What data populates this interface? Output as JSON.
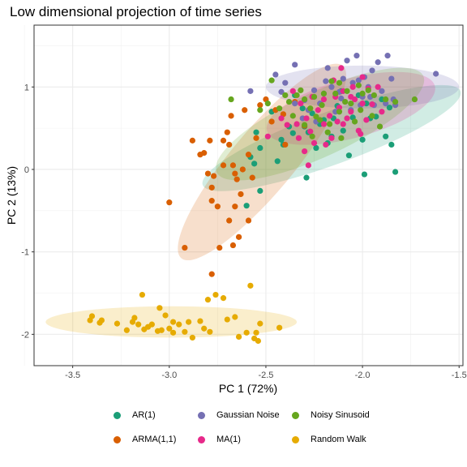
{
  "chart_data": {
    "type": "scatter",
    "title": "Low dimensional projection of time series",
    "xlabel": "PC 1 (72%)",
    "ylabel": "PC 2 (13%)",
    "xlim": [
      -3.7,
      -1.48
    ],
    "ylim": [
      -2.38,
      1.75
    ],
    "x_ticks": [
      -3.5,
      -3.0,
      -2.5,
      -2.0,
      -1.5
    ],
    "x_tick_labels": [
      "-3.5",
      "-3.0",
      "-2.5",
      "-2.0",
      "-1.5"
    ],
    "y_ticks": [
      -2,
      -1,
      0,
      1
    ],
    "y_tick_labels": [
      "-2",
      "-1",
      "0",
      "1"
    ],
    "grid": true,
    "legend_position": "bottom",
    "series": [
      {
        "name": "AR(1)",
        "color": "#1b9e77",
        "ellipse": {
          "cx": -2.16,
          "cy": 0.38,
          "rx": 0.71,
          "ry": 0.32,
          "angle_deg": 20
        },
        "points": [
          [
            -2.55,
            0.45
          ],
          [
            -2.53,
            0.26
          ],
          [
            -2.58,
            0.15
          ],
          [
            -2.6,
            -0.44
          ],
          [
            -2.53,
            -0.26
          ],
          [
            -2.42,
            0.36
          ],
          [
            -2.36,
            0.44
          ],
          [
            -2.3,
            0.52
          ],
          [
            -2.28,
            0.45
          ],
          [
            -2.2,
            0.6
          ],
          [
            -2.16,
            0.4
          ],
          [
            -2.1,
            0.47
          ],
          [
            -2.05,
            0.63
          ],
          [
            -2.02,
            0.9
          ],
          [
            -1.98,
            0.8
          ],
          [
            -1.96,
            0.62
          ],
          [
            -1.9,
            0.85
          ],
          [
            -1.88,
            0.4
          ],
          [
            -1.85,
            0.3
          ],
          [
            -1.83,
            -0.03
          ],
          [
            -1.86,
            0.75
          ],
          [
            -2.18,
            0.32
          ],
          [
            -2.26,
            0.68
          ],
          [
            -2.38,
            0.52
          ],
          [
            -2.0,
            0.36
          ],
          [
            -2.07,
            0.17
          ],
          [
            -2.13,
            0.77
          ],
          [
            -2.24,
            0.26
          ],
          [
            -2.29,
            -0.1
          ],
          [
            -2.31,
            0.74
          ],
          [
            -1.93,
            0.64
          ],
          [
            -2.56,
            0.07
          ],
          [
            -2.41,
            0.3
          ],
          [
            -2.22,
            0.55
          ],
          [
            -2.11,
            0.95
          ],
          [
            -2.35,
            0.9
          ],
          [
            -1.99,
            -0.06
          ],
          [
            -2.47,
            0.7
          ],
          [
            -2.44,
            0.1
          ],
          [
            -2.15,
            0.62
          ]
        ]
      },
      {
        "name": "ARMA(1,1)",
        "color": "#d95f02",
        "ellipse": {
          "cx": -2.52,
          "cy": 0.09,
          "rx": 0.65,
          "ry": 0.38,
          "angle_deg": 50
        },
        "points": [
          [
            -3.0,
            -0.4
          ],
          [
            -2.92,
            -0.95
          ],
          [
            -2.88,
            0.35
          ],
          [
            -2.82,
            0.2
          ],
          [
            -2.79,
            0.35
          ],
          [
            -2.8,
            -0.05
          ],
          [
            -2.78,
            -0.22
          ],
          [
            -2.78,
            -0.38
          ],
          [
            -2.75,
            -0.45
          ],
          [
            -2.72,
            0.35
          ],
          [
            -2.67,
            0.05
          ],
          [
            -2.66,
            -0.05
          ],
          [
            -2.65,
            -0.12
          ],
          [
            -2.63,
            -0.3
          ],
          [
            -2.67,
            -0.92
          ],
          [
            -2.64,
            -0.82
          ],
          [
            -2.78,
            -1.27
          ],
          [
            -2.68,
            0.65
          ],
          [
            -2.61,
            0.72
          ],
          [
            -2.59,
            0.18
          ],
          [
            -2.53,
            0.78
          ],
          [
            -2.5,
            0.85
          ],
          [
            -2.57,
            -0.1
          ],
          [
            -2.45,
            0.72
          ],
          [
            -2.4,
            0.3
          ],
          [
            -2.35,
            0.82
          ],
          [
            -2.3,
            0.53
          ],
          [
            -2.72,
            0.05
          ],
          [
            -2.69,
            -0.62
          ],
          [
            -2.62,
            0.0
          ],
          [
            -2.84,
            0.18
          ],
          [
            -2.55,
            0.38
          ],
          [
            -2.47,
            0.58
          ],
          [
            -2.41,
            0.67
          ],
          [
            -2.66,
            -0.45
          ],
          [
            -2.77,
            -0.08
          ],
          [
            -2.59,
            -0.62
          ],
          [
            -2.7,
            0.45
          ],
          [
            -2.74,
            -0.95
          ],
          [
            -2.69,
            0.3
          ]
        ]
      },
      {
        "name": "Gaussian Noise",
        "color": "#7570b3",
        "ellipse": {
          "cx": -2.0,
          "cy": 1.0,
          "rx": 0.5,
          "ry": 0.26,
          "angle_deg": 0
        },
        "points": [
          [
            -2.35,
            1.27
          ],
          [
            -2.18,
            1.23
          ],
          [
            -2.08,
            1.32
          ],
          [
            -2.03,
            1.38
          ],
          [
            -1.92,
            1.3
          ],
          [
            -1.87,
            1.38
          ],
          [
            -1.62,
            1.16
          ],
          [
            -1.85,
            1.1
          ],
          [
            -1.9,
            0.95
          ],
          [
            -1.97,
            1.0
          ],
          [
            -2.0,
            0.88
          ],
          [
            -2.05,
            1.05
          ],
          [
            -2.1,
            1.1
          ],
          [
            -2.12,
            0.94
          ],
          [
            -2.16,
            1.0
          ],
          [
            -2.2,
            0.92
          ],
          [
            -2.25,
            0.96
          ],
          [
            -2.3,
            0.84
          ],
          [
            -2.35,
            0.8
          ],
          [
            -2.42,
            0.94
          ],
          [
            -1.96,
            0.88
          ],
          [
            -1.84,
            0.85
          ],
          [
            -1.88,
            0.8
          ],
          [
            -1.83,
            0.78
          ],
          [
            -2.01,
            0.78
          ],
          [
            -2.06,
            0.72
          ],
          [
            -2.14,
            0.7
          ],
          [
            -2.22,
            0.8
          ],
          [
            -2.28,
            0.72
          ],
          [
            -2.31,
            0.62
          ],
          [
            -2.24,
            0.58
          ],
          [
            -1.95,
            1.2
          ],
          [
            -2.4,
            1.05
          ],
          [
            -2.45,
            1.15
          ],
          [
            -2.58,
            0.95
          ],
          [
            -2.02,
            1.08
          ],
          [
            -1.94,
            0.78
          ],
          [
            -2.11,
            0.86
          ],
          [
            -2.19,
            1.07
          ],
          [
            -1.99,
            1.12
          ]
        ]
      },
      {
        "name": "MA(1)",
        "color": "#e7298a",
        "ellipse": {
          "cx": -2.06,
          "cy": 0.74,
          "rx": 0.45,
          "ry": 0.36,
          "angle_deg": 15
        },
        "points": [
          [
            -2.49,
            0.4
          ],
          [
            -2.39,
            0.54
          ],
          [
            -2.33,
            0.38
          ],
          [
            -2.3,
            0.22
          ],
          [
            -2.28,
            0.05
          ],
          [
            -2.25,
            0.32
          ],
          [
            -2.2,
            0.55
          ],
          [
            -2.17,
            0.65
          ],
          [
            -2.12,
            0.75
          ],
          [
            -2.1,
            0.55
          ],
          [
            -2.06,
            0.7
          ],
          [
            -2.04,
            0.85
          ],
          [
            -2.02,
            0.47
          ],
          [
            -2.0,
            0.8
          ],
          [
            -1.97,
            0.98
          ],
          [
            -1.95,
            0.79
          ],
          [
            -1.92,
            1.0
          ],
          [
            -2.15,
            1.08
          ],
          [
            -2.1,
            0.95
          ],
          [
            -2.05,
            1.0
          ],
          [
            -2.2,
            0.85
          ],
          [
            -2.26,
            0.88
          ],
          [
            -2.16,
            0.38
          ],
          [
            -2.23,
            0.72
          ],
          [
            -2.32,
            0.8
          ],
          [
            -2.36,
            0.95
          ],
          [
            -2.42,
            0.62
          ],
          [
            -2.29,
            0.62
          ],
          [
            -2.01,
            0.43
          ],
          [
            -2.08,
            0.62
          ],
          [
            -2.14,
            0.88
          ],
          [
            -1.9,
            0.7
          ],
          [
            -2.0,
            1.12
          ],
          [
            -2.11,
            1.23
          ],
          [
            -2.34,
            0.55
          ],
          [
            -2.27,
            0.46
          ],
          [
            -2.19,
            0.3
          ],
          [
            -2.06,
            0.88
          ],
          [
            -1.98,
            0.6
          ],
          [
            -2.13,
            0.58
          ]
        ]
      },
      {
        "name": "Noisy Sinusoid",
        "color": "#66a61e",
        "ellipse": {
          "cx": -2.22,
          "cy": 0.55,
          "rx": 0.59,
          "ry": 0.39,
          "angle_deg": 25
        },
        "points": [
          [
            -2.68,
            0.85
          ],
          [
            -2.47,
            1.08
          ],
          [
            -2.4,
            0.9
          ],
          [
            -2.34,
            0.9
          ],
          [
            -2.3,
            0.85
          ],
          [
            -2.25,
            0.88
          ],
          [
            -2.2,
            0.92
          ],
          [
            -2.16,
            1.07
          ],
          [
            -2.12,
            1.05
          ],
          [
            -2.08,
            0.95
          ],
          [
            -2.02,
            1.02
          ],
          [
            -1.97,
            0.96
          ],
          [
            -1.94,
            0.9
          ],
          [
            -1.88,
            0.85
          ],
          [
            -1.83,
            0.82
          ],
          [
            -1.73,
            0.85
          ],
          [
            -2.3,
            0.54
          ],
          [
            -2.22,
            0.6
          ],
          [
            -2.17,
            0.55
          ],
          [
            -2.12,
            0.7
          ],
          [
            -2.06,
            0.8
          ],
          [
            -2.01,
            0.72
          ],
          [
            -2.27,
            0.74
          ],
          [
            -2.36,
            0.65
          ],
          [
            -2.43,
            0.74
          ],
          [
            -2.49,
            0.8
          ],
          [
            -2.53,
            0.72
          ],
          [
            -2.11,
            0.38
          ],
          [
            -2.18,
            0.45
          ],
          [
            -2.26,
            0.4
          ],
          [
            -2.0,
            0.92
          ],
          [
            -1.95,
            0.65
          ],
          [
            -2.04,
            0.58
          ],
          [
            -2.38,
            0.82
          ],
          [
            -2.09,
            0.82
          ],
          [
            -2.21,
            0.78
          ],
          [
            -2.32,
            0.96
          ],
          [
            -2.14,
            0.92
          ],
          [
            -1.91,
            0.52
          ],
          [
            -2.24,
            0.64
          ]
        ]
      },
      {
        "name": "Random Walk",
        "color": "#e6ab02",
        "ellipse": {
          "cx": -2.99,
          "cy": -1.85,
          "rx": 0.65,
          "ry": 0.19,
          "angle_deg": 0
        },
        "points": [
          [
            -3.41,
            -1.83
          ],
          [
            -3.4,
            -1.78
          ],
          [
            -3.36,
            -1.86
          ],
          [
            -3.27,
            -1.87
          ],
          [
            -3.22,
            -1.95
          ],
          [
            -3.19,
            -1.85
          ],
          [
            -3.16,
            -1.88
          ],
          [
            -3.13,
            -1.94
          ],
          [
            -3.11,
            -1.91
          ],
          [
            -3.09,
            -1.88
          ],
          [
            -3.06,
            -1.96
          ],
          [
            -3.04,
            -1.95
          ],
          [
            -3.0,
            -1.93
          ],
          [
            -2.98,
            -1.98
          ],
          [
            -2.95,
            -1.88
          ],
          [
            -2.9,
            -1.85
          ],
          [
            -2.84,
            -1.84
          ],
          [
            -2.82,
            -1.93
          ],
          [
            -2.79,
            -1.97
          ],
          [
            -2.76,
            -1.52
          ],
          [
            -2.72,
            -1.56
          ],
          [
            -2.66,
            -1.79
          ],
          [
            -2.64,
            -2.03
          ],
          [
            -2.6,
            -1.98
          ],
          [
            -2.58,
            -1.41
          ],
          [
            -2.56,
            -2.05
          ],
          [
            -2.54,
            -2.08
          ],
          [
            -2.53,
            -1.87
          ],
          [
            -2.43,
            -1.92
          ],
          [
            -3.14,
            -1.52
          ],
          [
            -3.05,
            -1.68
          ],
          [
            -2.98,
            -1.85
          ],
          [
            -2.8,
            -1.58
          ],
          [
            -2.88,
            -2.04
          ],
          [
            -3.02,
            -1.77
          ],
          [
            -3.18,
            -1.8
          ],
          [
            -2.7,
            -1.82
          ],
          [
            -2.92,
            -1.97
          ],
          [
            -2.55,
            -1.98
          ],
          [
            -3.35,
            -1.83
          ]
        ]
      }
    ]
  }
}
